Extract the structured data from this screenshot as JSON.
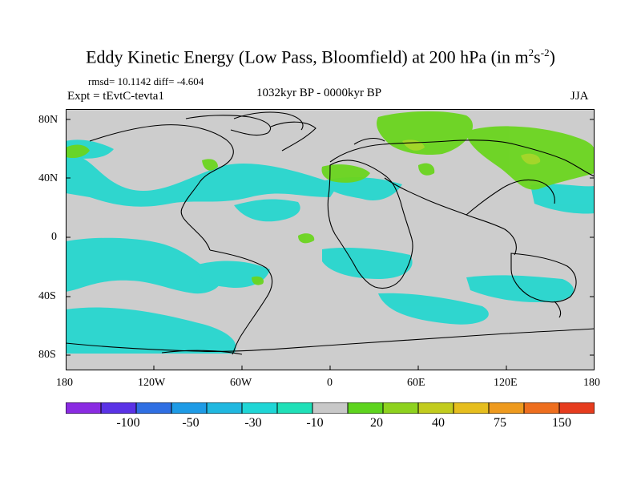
{
  "title": {
    "main": "Eddy Kinetic Energy (Low Pass, Bloomfield) at 200 hPa (in m",
    "sup1": "2",
    "mid": "s",
    "sup2": "-2",
    "close": ")"
  },
  "stats": "rmsd= 10.1142 diff= -4.604",
  "experiment": "Expt = tEvtC-tevta1",
  "period": "1032kyr BP - 0000kyr BP",
  "season": "JJA",
  "lat_ticks": [
    "80N",
    "40N",
    "0",
    "40S",
    "80S"
  ],
  "lon_ticks": [
    "180",
    "120W",
    "60W",
    "0",
    "60E",
    "120E",
    "180"
  ],
  "colorbar": {
    "labels": [
      "-100",
      "-50",
      "-30",
      "-10",
      "20",
      "40",
      "75",
      "150"
    ],
    "colors": [
      "#8a2be2",
      "#5a32e6",
      "#2f6fe3",
      "#1e9be6",
      "#20b8e0",
      "#1fd6d6",
      "#1fe0b8",
      "#c8c8c8",
      "#5ed41e",
      "#8ed21e",
      "#c2cc1e",
      "#e6be1e",
      "#ee9a1e",
      "#ee6e1e",
      "#e63c1e"
    ]
  },
  "colors": {
    "land_ocean_bg": "#cdcdcd",
    "neg_light": "#22d7cf",
    "neg_mid": "#1fc9dc",
    "pos_light": "#6ad51f",
    "pos_mid": "#a8d62a"
  }
}
